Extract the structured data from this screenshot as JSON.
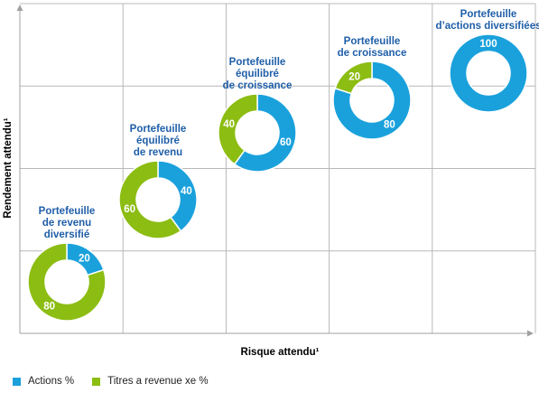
{
  "chart_data": {
    "type": "pie",
    "xlabel": "Risque attendu¹",
    "ylabel": "Rendement attendu¹",
    "grid": true,
    "legend_position": "bottom-left",
    "colors": {
      "actions": "#1aa1dc",
      "revenu_fixe": "#8cbd13",
      "title": "#1f5ea8",
      "grid": "#b8b8b8"
    },
    "series": [
      {
        "name": "Actions %",
        "key": "actions"
      },
      {
        "name": "Titres a revenue xe %",
        "key": "revenu_fixe"
      }
    ],
    "portfolios": [
      {
        "title_lines": [
          "Portefeuille",
          "de revenu",
          "diversifié"
        ],
        "actions": 20,
        "revenu_fixe": 80
      },
      {
        "title_lines": [
          "Portefeuille",
          "équilibré",
          "de revenu"
        ],
        "actions": 40,
        "revenu_fixe": 60
      },
      {
        "title_lines": [
          "Portefeuille",
          "équilibré",
          "de croissance"
        ],
        "actions": 60,
        "revenu_fixe": 40
      },
      {
        "title_lines": [
          "Portefeuille",
          "de croissance"
        ],
        "actions": 80,
        "revenu_fixe": 20
      },
      {
        "title_lines": [
          "Portefeuille",
          "d’actions diversifiées"
        ],
        "actions": 100,
        "revenu_fixe": 0
      }
    ]
  }
}
